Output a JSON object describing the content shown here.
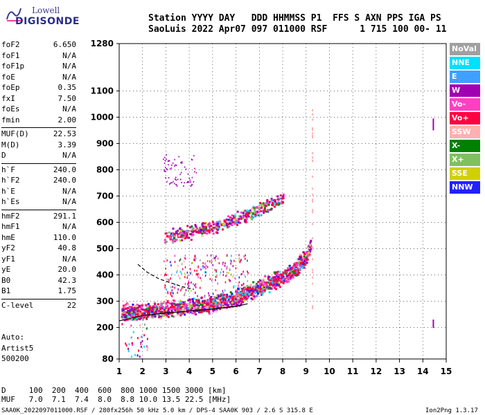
{
  "logo": {
    "top": "Lowell",
    "bottom": "DIGISONDE"
  },
  "header": {
    "line1": "Station YYYY DAY   DDD HHMMSS P1  FFS S AXN PPS IGA PS",
    "line2": "SaoLuis 2022 Apr07 097 011000 RSF      1 715 100 00- 11"
  },
  "params": [
    {
      "group": [
        {
          "name": "foF2",
          "value": "6.650"
        },
        {
          "name": "foF1",
          "value": "N/A"
        },
        {
          "name": "foF1p",
          "value": "N/A"
        },
        {
          "name": "foE",
          "value": "N/A"
        },
        {
          "name": "foEp",
          "value": "0.35"
        },
        {
          "name": "fxI",
          "value": "7.50"
        },
        {
          "name": "foEs",
          "value": "N/A"
        },
        {
          "name": "fmin",
          "value": "2.00"
        }
      ]
    },
    {
      "group": [
        {
          "name": "MUF(D)",
          "value": "22.53"
        },
        {
          "name": "M(D)",
          "value": "3.39"
        },
        {
          "name": "D",
          "value": "N/A"
        }
      ]
    },
    {
      "group": [
        {
          "name": "h`F",
          "value": "240.0"
        },
        {
          "name": "h`F2",
          "value": "240.0"
        },
        {
          "name": "h`E",
          "value": "N/A"
        },
        {
          "name": "h`Es",
          "value": "N/A"
        }
      ]
    },
    {
      "group": [
        {
          "name": "hmF2",
          "value": "291.1"
        },
        {
          "name": "hmF1",
          "value": "N/A"
        },
        {
          "name": "hmE",
          "value": "110.0"
        },
        {
          "name": "yF2",
          "value": "40.8"
        },
        {
          "name": "yF1",
          "value": "N/A"
        },
        {
          "name": "yE",
          "value": "20.0"
        },
        {
          "name": "B0",
          "value": "42.3"
        },
        {
          "name": "B1",
          "value": "1.75"
        }
      ]
    },
    {
      "group": [
        {
          "name": "C-level",
          "value": "22"
        }
      ]
    }
  ],
  "auto": {
    "line1": "Auto:",
    "line2": "Artist5",
    "line3": "500200"
  },
  "legend": [
    {
      "label": "NoVal",
      "color": "#a0a0a0"
    },
    {
      "label": "NNE",
      "color": "#00e0ff"
    },
    {
      "label": "E",
      "color": "#40a0ff"
    },
    {
      "label": "W",
      "color": "#a000b0"
    },
    {
      "label": "Vo-",
      "color": "#ff40c0"
    },
    {
      "label": "Vo+",
      "color": "#ff0040"
    },
    {
      "label": "SSW",
      "color": "#ffb0b0"
    },
    {
      "label": "X-",
      "color": "#008000"
    },
    {
      "label": "X+",
      "color": "#80c060"
    },
    {
      "label": "SSE",
      "color": "#d0d000"
    },
    {
      "label": "NNW",
      "color": "#2020ff"
    }
  ],
  "bottom": {
    "d_line": "D     100  200  400  600  800 1000 1500 3000 [km]",
    "muf_line": "MUF   7.0  7.1  7.4  8.0  8.8 10.0 13.5 22.5 [MHz]"
  },
  "footer": {
    "left": "SAA0K_2022097011000.RSF / 280fx256h 50 kHz 5.0 km / DPS-4 SAA0K 903 / 2.6 S 315.8 E",
    "right": "Ion2Png 1.3.17"
  },
  "chart_data": {
    "type": "scatter",
    "xlim": [
      1,
      15
    ],
    "ylim": [
      80,
      1280
    ],
    "x_ticks": [
      1,
      2,
      3,
      4,
      5,
      6,
      7,
      8,
      9,
      10,
      11,
      12,
      13,
      14,
      15
    ],
    "y_ticks": [
      80,
      200,
      300,
      400,
      500,
      600,
      700,
      800,
      900,
      1000,
      1100,
      1280
    ],
    "traces": {
      "o_trace": [
        [
          1.0,
          250
        ],
        [
          2.0,
          258
        ],
        [
          3.0,
          265
        ],
        [
          4.0,
          275
        ],
        [
          5.0,
          285
        ],
        [
          5.5,
          295
        ],
        [
          6.0,
          310
        ],
        [
          6.5,
          330
        ],
        [
          7.0,
          350
        ],
        [
          7.5,
          370
        ],
        [
          8.0,
          390
        ],
        [
          8.5,
          420
        ],
        [
          9.0,
          470
        ],
        [
          9.2,
          520
        ]
      ],
      "x_trace": [
        [
          1.0,
          470
        ],
        [
          1.5,
          440
        ],
        [
          2.0,
          405
        ],
        [
          2.5,
          380
        ],
        [
          3.0,
          360
        ]
      ],
      "lower_trace": [
        [
          1.0,
          225
        ],
        [
          2.0,
          245
        ],
        [
          3.0,
          255
        ],
        [
          4.0,
          262
        ],
        [
          5.0,
          270
        ],
        [
          6.0,
          280
        ],
        [
          6.5,
          290
        ]
      ],
      "upper_echo": [
        [
          2.0,
          530
        ],
        [
          3.0,
          540
        ],
        [
          4.0,
          560
        ],
        [
          5.0,
          580
        ],
        [
          6.0,
          610
        ],
        [
          6.5,
          630
        ],
        [
          7.0,
          650
        ],
        [
          7.5,
          670
        ],
        [
          8.0,
          690
        ]
      ],
      "dashed_profile": [
        [
          1.8,
          440
        ],
        [
          2.2,
          410
        ],
        [
          2.7,
          385
        ],
        [
          3.2,
          370
        ],
        [
          3.7,
          355
        ],
        [
          4.2,
          345
        ]
      ]
    }
  }
}
